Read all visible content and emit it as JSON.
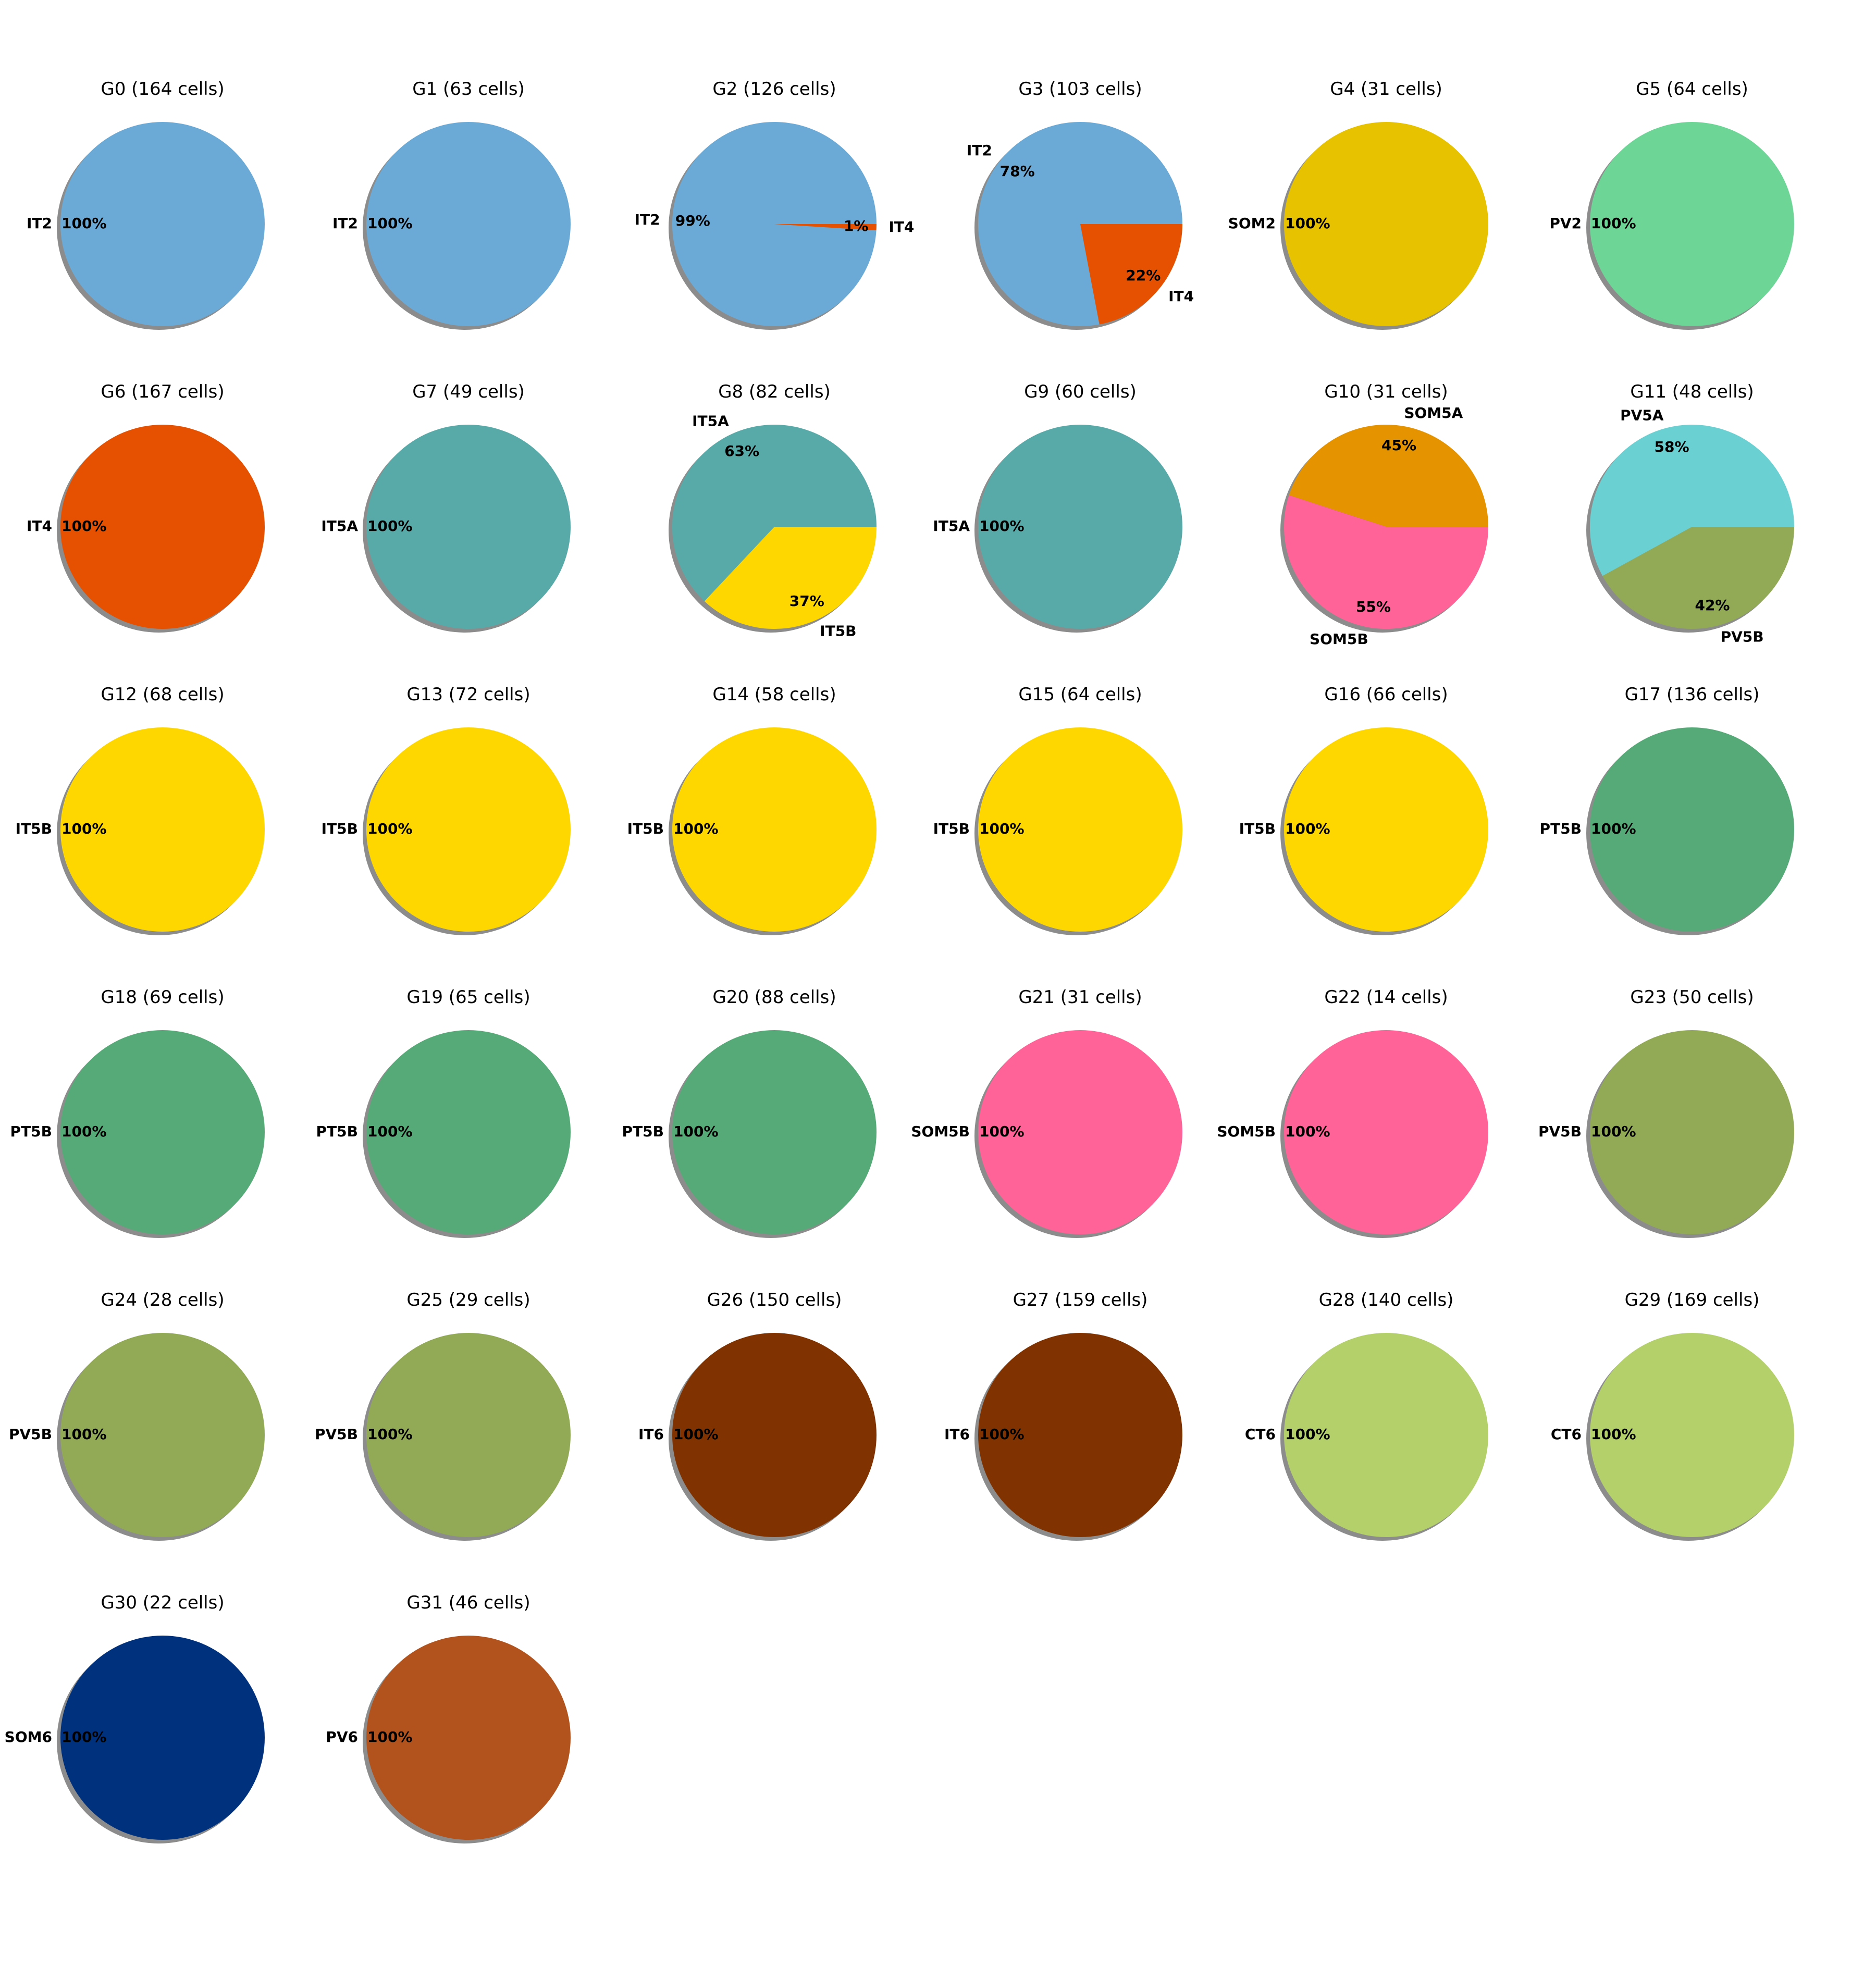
{
  "chart_data": [
    {
      "type": "pie",
      "title": "G0 (164 cells)",
      "slices": [
        {
          "label": "IT2",
          "pct": 100,
          "color": "#6baad6"
        }
      ]
    },
    {
      "type": "pie",
      "title": "G1 (63 cells)",
      "slices": [
        {
          "label": "IT2",
          "pct": 100,
          "color": "#6baad6"
        }
      ]
    },
    {
      "type": "pie",
      "title": "G2 (126 cells)",
      "slices": [
        {
          "label": "IT2",
          "pct": 99,
          "color": "#6baad6"
        },
        {
          "label": "IT4",
          "pct": 1,
          "color": "#e55100"
        }
      ]
    },
    {
      "type": "pie",
      "title": "G3 (103 cells)",
      "slices": [
        {
          "label": "IT2",
          "pct": 78,
          "color": "#6baad6"
        },
        {
          "label": "IT4",
          "pct": 22,
          "color": "#e55100"
        }
      ]
    },
    {
      "type": "pie",
      "title": "G4 (31 cells)",
      "slices": [
        {
          "label": "SOM2",
          "pct": 100,
          "color": "#e6c200"
        }
      ]
    },
    {
      "type": "pie",
      "title": "G5 (64 cells)",
      "slices": [
        {
          "label": "PV2",
          "pct": 100,
          "color": "#6dd596"
        }
      ]
    },
    {
      "type": "pie",
      "title": "G6 (167 cells)",
      "slices": [
        {
          "label": "IT4",
          "pct": 100,
          "color": "#e55100"
        }
      ]
    },
    {
      "type": "pie",
      "title": "G7 (49 cells)",
      "slices": [
        {
          "label": "IT5A",
          "pct": 100,
          "color": "#58aaa9"
        }
      ]
    },
    {
      "type": "pie",
      "title": "G8 (82 cells)",
      "slices": [
        {
          "label": "IT5A",
          "pct": 63,
          "color": "#58aaa9"
        },
        {
          "label": "IT5B",
          "pct": 37,
          "color": "#ffd700"
        }
      ]
    },
    {
      "type": "pie",
      "title": "G9 (60 cells)",
      "slices": [
        {
          "label": "IT5A",
          "pct": 100,
          "color": "#58aaa9"
        }
      ]
    },
    {
      "type": "pie",
      "title": "G10 (31 cells)",
      "slices": [
        {
          "label": "SOM5A",
          "pct": 45,
          "color": "#e59400"
        },
        {
          "label": "SOM5B",
          "pct": 55,
          "color": "#ff6398"
        }
      ]
    },
    {
      "type": "pie",
      "title": "G11 (48 cells)",
      "slices": [
        {
          "label": "PV5A",
          "pct": 58,
          "color": "#6bd0d2"
        },
        {
          "label": "PV5B",
          "pct": 42,
          "color": "#92aa56"
        }
      ]
    },
    {
      "type": "pie",
      "title": "G12 (68 cells)",
      "slices": [
        {
          "label": "IT5B",
          "pct": 100,
          "color": "#ffd700"
        }
      ]
    },
    {
      "type": "pie",
      "title": "G13 (72 cells)",
      "slices": [
        {
          "label": "IT5B",
          "pct": 100,
          "color": "#ffd700"
        }
      ]
    },
    {
      "type": "pie",
      "title": "G14 (58 cells)",
      "slices": [
        {
          "label": "IT5B",
          "pct": 100,
          "color": "#ffd700"
        }
      ]
    },
    {
      "type": "pie",
      "title": "G15 (64 cells)",
      "slices": [
        {
          "label": "IT5B",
          "pct": 100,
          "color": "#ffd700"
        }
      ]
    },
    {
      "type": "pie",
      "title": "G16 (66 cells)",
      "slices": [
        {
          "label": "IT5B",
          "pct": 100,
          "color": "#ffd700"
        }
      ]
    },
    {
      "type": "pie",
      "title": "G17 (136 cells)",
      "slices": [
        {
          "label": "PT5B",
          "pct": 100,
          "color": "#56aa77"
        }
      ]
    },
    {
      "type": "pie",
      "title": "G18 (69 cells)",
      "slices": [
        {
          "label": "PT5B",
          "pct": 100,
          "color": "#56aa77"
        }
      ]
    },
    {
      "type": "pie",
      "title": "G19 (65 cells)",
      "slices": [
        {
          "label": "PT5B",
          "pct": 100,
          "color": "#56aa77"
        }
      ]
    },
    {
      "type": "pie",
      "title": "G20 (88 cells)",
      "slices": [
        {
          "label": "PT5B",
          "pct": 100,
          "color": "#56aa77"
        }
      ]
    },
    {
      "type": "pie",
      "title": "G21 (31 cells)",
      "slices": [
        {
          "label": "SOM5B",
          "pct": 100,
          "color": "#ff6398"
        }
      ]
    },
    {
      "type": "pie",
      "title": "G22 (14 cells)",
      "slices": [
        {
          "label": "SOM5B",
          "pct": 100,
          "color": "#ff6398"
        }
      ]
    },
    {
      "type": "pie",
      "title": "G23 (50 cells)",
      "slices": [
        {
          "label": "PV5B",
          "pct": 100,
          "color": "#92aa56"
        }
      ]
    },
    {
      "type": "pie",
      "title": "G24 (28 cells)",
      "slices": [
        {
          "label": "PV5B",
          "pct": 100,
          "color": "#92aa56"
        }
      ]
    },
    {
      "type": "pie",
      "title": "G25 (29 cells)",
      "slices": [
        {
          "label": "PV5B",
          "pct": 100,
          "color": "#92aa56"
        }
      ]
    },
    {
      "type": "pie",
      "title": "G26 (150 cells)",
      "slices": [
        {
          "label": "IT6",
          "pct": 100,
          "color": "#803300"
        }
      ]
    },
    {
      "type": "pie",
      "title": "G27 (159 cells)",
      "slices": [
        {
          "label": "IT6",
          "pct": 100,
          "color": "#803300"
        }
      ]
    },
    {
      "type": "pie",
      "title": "G28 (140 cells)",
      "slices": [
        {
          "label": "CT6",
          "pct": 100,
          "color": "#b3d06b"
        }
      ]
    },
    {
      "type": "pie",
      "title": "G29 (169 cells)",
      "slices": [
        {
          "label": "CT6",
          "pct": 100,
          "color": "#b3d06b"
        }
      ]
    },
    {
      "type": "pie",
      "title": "G30 (22 cells)",
      "slices": [
        {
          "label": "SOM6",
          "pct": 100,
          "color": "#00317d"
        }
      ]
    },
    {
      "type": "pie",
      "title": "G31 (46 cells)",
      "slices": [
        {
          "label": "PV6",
          "pct": 100,
          "color": "#b2521c"
        }
      ]
    }
  ]
}
